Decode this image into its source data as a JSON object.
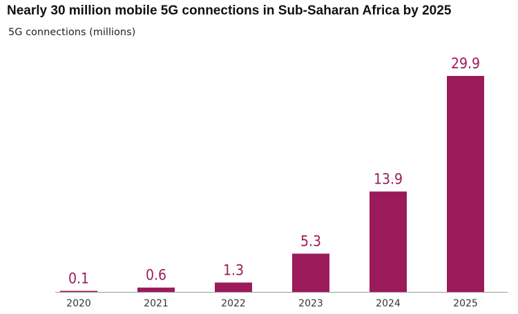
{
  "chart_data": {
    "type": "bar",
    "title": "Nearly 30 million mobile 5G connections in Sub-Saharan Africa by 2025",
    "subtitle": "5G connections (millions)",
    "xlabel": "",
    "ylabel": "",
    "categories": [
      "2020",
      "2021",
      "2022",
      "2023",
      "2024",
      "2025"
    ],
    "values": [
      0.1,
      0.6,
      1.3,
      5.3,
      13.9,
      29.9
    ],
    "data_labels": [
      "0.1",
      "0.6",
      "1.3",
      "5.3",
      "13.9",
      "29.9"
    ],
    "ylim": [
      0,
      29.9
    ],
    "grid": false,
    "legend": "none",
    "colors": {
      "bar": "#9b1b5a",
      "label": "#9b1b5a",
      "axis": "#999999"
    }
  }
}
